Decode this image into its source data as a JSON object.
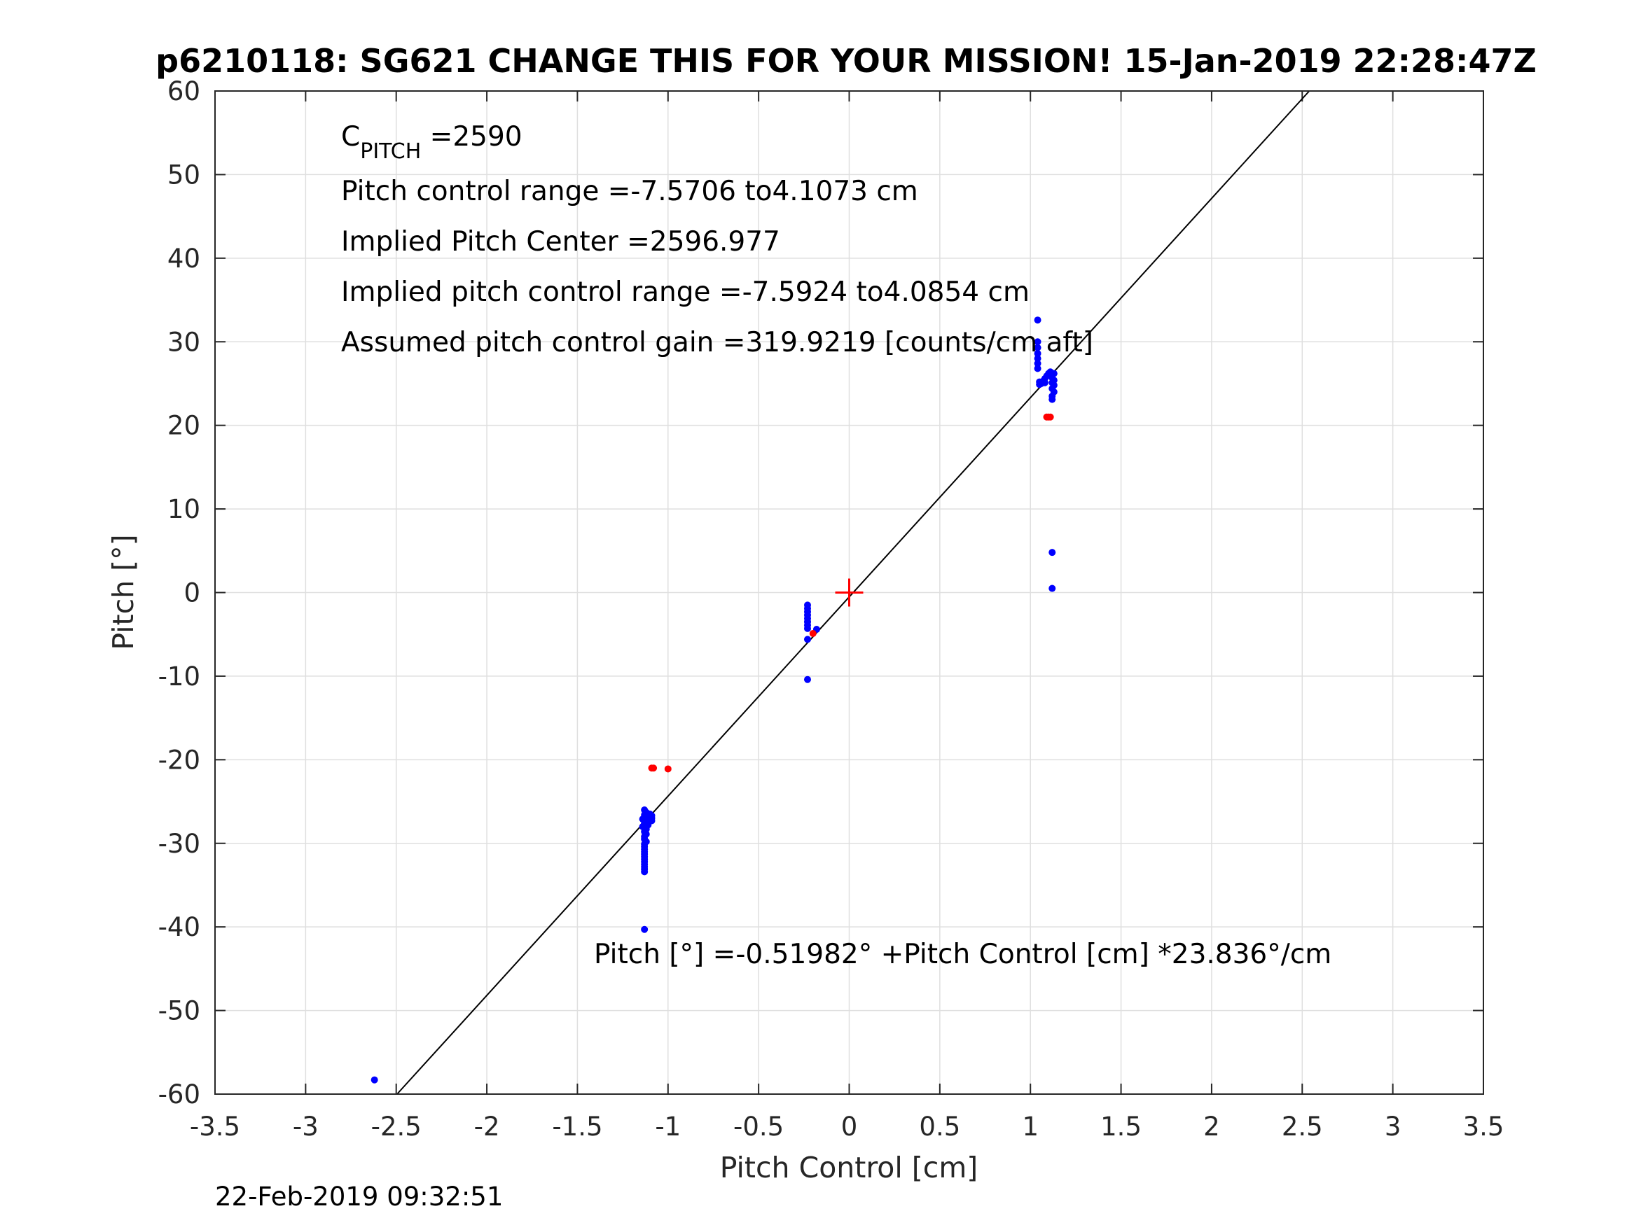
{
  "chart_data": {
    "type": "scatter",
    "title": "p6210118: SG621 CHANGE THIS FOR YOUR MISSION! 15-Jan-2019 22:28:47Z",
    "xlabel": "Pitch Control [cm]",
    "ylabel": "Pitch [°]",
    "xlim": [
      -3.5,
      3.5
    ],
    "ylim": [
      -60,
      60
    ],
    "xticks": [
      -3.5,
      -3,
      -2.5,
      -2,
      -1.5,
      -1,
      -0.5,
      0,
      0.5,
      1,
      1.5,
      2,
      2.5,
      3,
      3.5
    ],
    "xtick_labels": [
      "-3.5",
      "-3",
      "-2.5",
      "-2",
      "-1.5",
      "-1",
      "-0.5",
      "0",
      "0.5",
      "1",
      "1.5",
      "2",
      "2.5",
      "3",
      "3.5"
    ],
    "yticks": [
      -60,
      -50,
      -40,
      -30,
      -20,
      -10,
      0,
      10,
      20,
      30,
      40,
      50,
      60
    ],
    "ytick_labels": [
      "-60",
      "-50",
      "-40",
      "-30",
      "-20",
      "-10",
      "0",
      "10",
      "20",
      "30",
      "40",
      "50",
      "60"
    ],
    "grid": true,
    "series": [
      {
        "color": "#0000ff",
        "marker": "dot",
        "points": [
          [
            -2.62,
            -58.3
          ],
          [
            -1.13,
            -40.3
          ],
          [
            -1.13,
            -26.0
          ],
          [
            -1.12,
            -26.3
          ],
          [
            -1.13,
            -26.6
          ],
          [
            -1.11,
            -26.9
          ],
          [
            -1.14,
            -27.1
          ],
          [
            -1.12,
            -27.3
          ],
          [
            -1.13,
            -27.6
          ],
          [
            -1.11,
            -27.8
          ],
          [
            -1.14,
            -28.0
          ],
          [
            -1.12,
            -28.3
          ],
          [
            -1.13,
            -28.6
          ],
          [
            -1.12,
            -28.9
          ],
          [
            -1.13,
            -29.2
          ],
          [
            -1.13,
            -29.5
          ],
          [
            -1.12,
            -29.8
          ],
          [
            -1.13,
            -30.1
          ],
          [
            -1.13,
            -30.4
          ],
          [
            -1.13,
            -30.7
          ],
          [
            -1.13,
            -31.0
          ],
          [
            -1.13,
            -31.3
          ],
          [
            -1.13,
            -31.6
          ],
          [
            -1.13,
            -31.9
          ],
          [
            -1.13,
            -32.2
          ],
          [
            -1.13,
            -32.5
          ],
          [
            -1.13,
            -32.8
          ],
          [
            -1.13,
            -33.1
          ],
          [
            -1.13,
            -33.4
          ],
          [
            -1.09,
            -26.7
          ],
          [
            -1.09,
            -27.0
          ],
          [
            -1.09,
            -27.3
          ],
          [
            -1.1,
            -26.5
          ],
          [
            -0.23,
            -1.5
          ],
          [
            -0.23,
            -1.9
          ],
          [
            -0.23,
            -2.3
          ],
          [
            -0.23,
            -2.7
          ],
          [
            -0.23,
            -3.1
          ],
          [
            -0.23,
            -3.5
          ],
          [
            -0.23,
            -3.9
          ],
          [
            -0.23,
            -4.3
          ],
          [
            -0.23,
            -5.6
          ],
          [
            -0.18,
            -4.4
          ],
          [
            -0.23,
            -10.4
          ],
          [
            1.04,
            32.6
          ],
          [
            1.04,
            30.0
          ],
          [
            1.04,
            29.3
          ],
          [
            1.04,
            28.6
          ],
          [
            1.04,
            28.0
          ],
          [
            1.04,
            27.4
          ],
          [
            1.04,
            26.8
          ],
          [
            1.05,
            25.2
          ],
          [
            1.06,
            25.0
          ],
          [
            1.07,
            25.3
          ],
          [
            1.08,
            25.6
          ],
          [
            1.09,
            25.9
          ],
          [
            1.1,
            26.2
          ],
          [
            1.11,
            26.0
          ],
          [
            1.12,
            25.7
          ],
          [
            1.13,
            25.4
          ],
          [
            1.12,
            25.1
          ],
          [
            1.13,
            24.8
          ],
          [
            1.12,
            24.4
          ],
          [
            1.13,
            24.0
          ],
          [
            1.12,
            23.5
          ],
          [
            1.12,
            23.1
          ],
          [
            1.11,
            26.4
          ],
          [
            1.13,
            26.2
          ],
          [
            1.05,
            24.9
          ],
          [
            1.08,
            25.1
          ],
          [
            1.12,
            4.8
          ],
          [
            1.12,
            0.5
          ]
        ]
      },
      {
        "color": "#ff0000",
        "marker": "dot",
        "points": [
          [
            -1.09,
            -21.0
          ],
          [
            -1.08,
            -21.0
          ],
          [
            -1.0,
            -21.1
          ],
          [
            1.09,
            21.0
          ],
          [
            1.1,
            21.0
          ],
          [
            1.11,
            21.0
          ],
          [
            -0.2,
            -4.9
          ]
        ]
      }
    ],
    "center_marker": {
      "x": 0,
      "y": 0,
      "marker": "+",
      "color": "#ff0000"
    },
    "fit_line": {
      "intercept": -0.51982,
      "slope": 23.836,
      "color": "#000000"
    },
    "annotations": {
      "c_pitch_main": "C",
      "c_pitch_sub": "PITCH",
      "c_pitch_value": " =2590",
      "range": "Pitch control range =-7.5706 to4.1073 cm",
      "center": "Implied Pitch Center =2596.977",
      "implied_range": "Implied pitch control range =-7.5924 to4.0854 cm",
      "gain": "Assumed pitch control gain =319.9219 [counts/cm aft]",
      "equation": "Pitch [°] =-0.51982° +Pitch Control [cm] *23.836°/cm"
    },
    "footer": "22-Feb-2019 09:32:51"
  }
}
